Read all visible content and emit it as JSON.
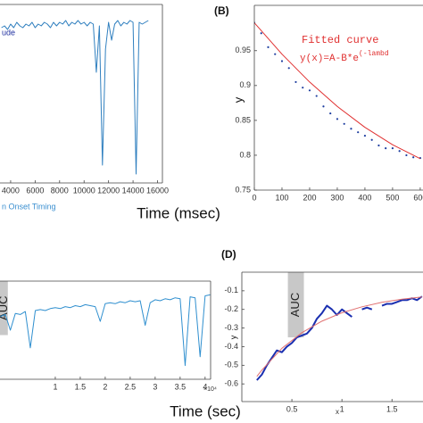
{
  "chart_data": [
    {
      "type": "line",
      "xlim": [
        3130,
        16400
      ],
      "ylim": [
        0,
        1
      ],
      "xticks": [
        4000,
        6000,
        8000,
        10000,
        12000,
        14000,
        16000
      ],
      "xlabel": "Time (msec)",
      "annotations": [
        "n Onset Timing"
      ],
      "series": [
        {
          "name": "ude",
          "color": "#2f7fbf",
          "mode": "line",
          "x": [
            3250,
            3500,
            3750,
            4000,
            4250,
            4500,
            4750,
            5000,
            5250,
            5500,
            5750,
            6000,
            6250,
            6500,
            6750,
            7000,
            7250,
            7500,
            7750,
            8000,
            8250,
            8500,
            8750,
            9000,
            9250,
            9500,
            9750,
            10000,
            10250,
            10500,
            10750,
            11000,
            11250,
            11500,
            11750,
            12000,
            12250,
            12500,
            12750,
            13000,
            13250,
            13500,
            13750,
            14000,
            14250,
            14500,
            14750,
            15000,
            15250
          ],
          "values": [
            0.87,
            0.88,
            0.86,
            0.89,
            0.87,
            0.9,
            0.88,
            0.87,
            0.89,
            0.88,
            0.9,
            0.87,
            0.89,
            0.88,
            0.9,
            0.89,
            0.87,
            0.9,
            0.88,
            0.9,
            0.89,
            0.91,
            0.88,
            0.9,
            0.89,
            0.91,
            0.89,
            0.9,
            0.88,
            0.9,
            0.89,
            0.62,
            0.88,
            0.1,
            0.75,
            0.9,
            0.8,
            0.89,
            0.91,
            0.88,
            0.9,
            0.89,
            0.91,
            0.9,
            0.05,
            0.9,
            0.89,
            0.9,
            0.91
          ]
        }
      ]
    },
    {
      "type": "line",
      "label": "(B)",
      "xlim": [
        0,
        610
      ],
      "ylim": [
        0.75,
        1.015
      ],
      "xticks": [
        0,
        100,
        200,
        300,
        400,
        500,
        600
      ],
      "yticks": [
        0.75,
        0.8,
        0.85,
        0.9,
        0.95
      ],
      "ylabel": "y",
      "fit_title": "Fitted curve",
      "equation": "y(x)=A-B*e",
      "equation_exponent": "(-lambd",
      "series": [
        {
          "color": "#1f3fa0",
          "mode": "markers",
          "x": [
            0,
            25,
            50,
            75,
            100,
            125,
            150,
            175,
            200,
            225,
            250,
            275,
            300,
            325,
            350,
            375,
            400,
            425,
            450,
            475,
            500,
            525,
            550,
            575,
            600
          ],
          "values": [
            0.99,
            0.975,
            0.955,
            0.945,
            0.935,
            0.925,
            0.905,
            0.897,
            0.893,
            0.885,
            0.87,
            0.86,
            0.852,
            0.845,
            0.838,
            0.833,
            0.828,
            0.822,
            0.814,
            0.81,
            0.81,
            0.806,
            0.8,
            0.797,
            0.796
          ]
        },
        {
          "color": "#e03030",
          "mode": "line",
          "x": [
            0,
            100,
            200,
            300,
            400,
            500,
            600
          ],
          "values": [
            0.99,
            0.945,
            0.905,
            0.87,
            0.84,
            0.815,
            0.795
          ]
        }
      ]
    },
    {
      "type": "line",
      "xlim": [
        -0.107,
        4.11
      ],
      "ylim": [
        0,
        1
      ],
      "xticks": [
        1,
        1.5,
        2,
        2.5,
        3,
        3.5,
        4
      ],
      "x_multiplier": "×10⁴",
      "xlabel": "Time (sec)",
      "band": {
        "label": "AUC",
        "x": [
          -0.107,
          0.05
        ],
        "y": [
          0.45,
          1
        ]
      },
      "series": [
        {
          "color": "#2f8fcf",
          "mode": "line",
          "x": [
            -0.1,
            0,
            0.1,
            0.2,
            0.3,
            0.4,
            0.5,
            0.6,
            0.7,
            0.8,
            0.9,
            1,
            1.1,
            1.2,
            1.3,
            1.4,
            1.5,
            1.6,
            1.7,
            1.8,
            1.9,
            2,
            2.1,
            2.2,
            2.3,
            2.4,
            2.5,
            2.6,
            2.7,
            2.8,
            2.9,
            3,
            3.1,
            3.2,
            3.3,
            3.4,
            3.5,
            3.6,
            3.7,
            3.8,
            3.9,
            4,
            4.1
          ],
          "values": [
            0.64,
            0.66,
            0.5,
            0.67,
            0.66,
            0.69,
            0.32,
            0.7,
            0.71,
            0.7,
            0.72,
            0.73,
            0.72,
            0.74,
            0.73,
            0.75,
            0.74,
            0.76,
            0.75,
            0.74,
            0.59,
            0.77,
            0.78,
            0.77,
            0.79,
            0.78,
            0.8,
            0.79,
            0.8,
            0.55,
            0.78,
            0.81,
            0.8,
            0.82,
            0.81,
            0.83,
            0.82,
            0.14,
            0.84,
            0.83,
            0.23,
            0.85,
            0.86
          ]
        }
      ]
    },
    {
      "type": "line",
      "label": "(D)",
      "xlim": [
        0,
        1.81
      ],
      "ylim": [
        -0.695,
        0
      ],
      "xticks": [
        0.5,
        1,
        1.5
      ],
      "yticks": [
        -0.6,
        -0.5,
        -0.4,
        -0.3,
        -0.2,
        -0.1
      ],
      "xlabel": "x",
      "ylabel": "y",
      "band": {
        "label": "AUC",
        "x": [
          0.46,
          0.62
        ],
        "y": [
          -0.35,
          0
        ]
      },
      "series": [
        {
          "color": "#1a2fb0",
          "mode": "line",
          "width": 2,
          "x": [
            0.15,
            0.2,
            0.25,
            0.3,
            0.35,
            0.4,
            0.45,
            0.5,
            0.55,
            0.6,
            0.65,
            0.7,
            0.75,
            0.8,
            0.85,
            0.9,
            0.95,
            1,
            1.05,
            1.1,
            1.15,
            1.2,
            1.25,
            1.3,
            1.35,
            1.4,
            1.45,
            1.5,
            1.55,
            1.6,
            1.65,
            1.7,
            1.75,
            1.8
          ],
          "values": [
            -0.58,
            -0.55,
            -0.5,
            -0.46,
            -0.42,
            -0.43,
            -0.4,
            -0.38,
            -0.35,
            -0.34,
            -0.33,
            -0.3,
            -0.25,
            -0.22,
            -0.18,
            -0.2,
            -0.23,
            -0.2,
            -0.22,
            -0.24,
            null,
            -0.2,
            -0.19,
            -0.2,
            null,
            -0.18,
            -0.17,
            -0.17,
            -0.16,
            -0.15,
            -0.15,
            -0.14,
            -0.15,
            -0.13
          ]
        },
        {
          "color": "#e07070",
          "mode": "line",
          "width": 1,
          "x": [
            0.15,
            0.2,
            0.4,
            0.6,
            0.8,
            1,
            1.2,
            1.4,
            1.6,
            1.8
          ],
          "values": [
            -0.56,
            -0.526,
            -0.409,
            -0.325,
            -0.263,
            -0.218,
            -0.186,
            -0.162,
            -0.145,
            -0.133
          ]
        }
      ]
    }
  ]
}
